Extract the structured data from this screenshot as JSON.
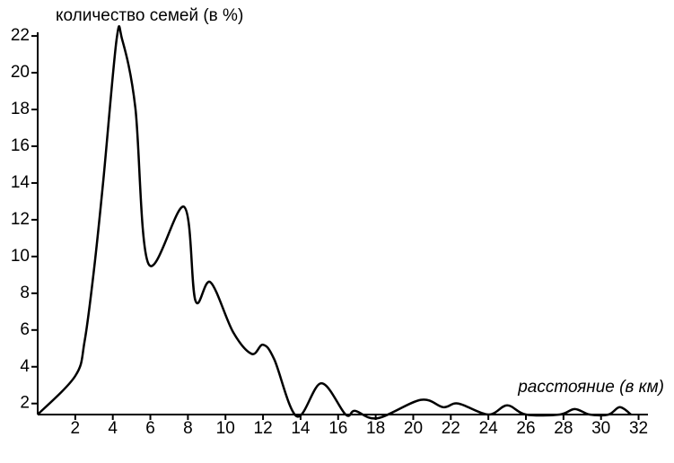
{
  "chart_data": {
    "type": "line",
    "ylabel": "количество семей (в %)",
    "xlabel": "расстояние (в км)",
    "x": [
      0,
      2,
      2.5,
      3,
      3.5,
      4.2,
      4.5,
      5.2,
      5.9,
      7.8,
      8.4,
      9.2,
      10.4,
      11.4,
      12,
      12.6,
      13.8,
      15.1,
      16.4,
      16.9,
      18.1,
      20.4,
      21.6,
      22.4,
      24,
      25,
      26,
      27.8,
      28.6,
      29.4,
      30.4,
      31,
      31.6
    ],
    "series": [
      {
        "name": null,
        "color": "#000000",
        "values": [
          1.4,
          3.5,
          5.4,
          9.3,
          14.2,
          21.8,
          21.8,
          18.1,
          9.6,
          12.7,
          7.6,
          8.6,
          5.9,
          4.7,
          5.2,
          4.4,
          1.3,
          3.1,
          1.4,
          1.6,
          1.2,
          2.2,
          1.8,
          2.0,
          1.4,
          1.9,
          1.4,
          1.4,
          1.7,
          1.4,
          1.4,
          1.8,
          1.4
        ]
      }
    ],
    "xlim": [
      0,
      32.5
    ],
    "ylim": [
      1.4,
      22.2
    ],
    "xticks": [
      2,
      4,
      6,
      8,
      10,
      12,
      14,
      16,
      18,
      20,
      22,
      24,
      26,
      28,
      30,
      32
    ],
    "yticks": [
      2,
      4,
      6,
      8,
      10,
      12,
      14,
      16,
      18,
      20,
      22
    ]
  }
}
